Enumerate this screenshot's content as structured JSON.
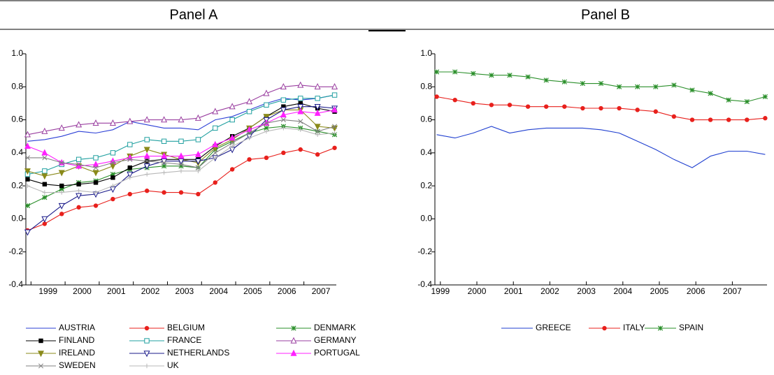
{
  "chart_data": [
    {
      "type": "line",
      "title": "Panel A",
      "x": [
        1998.9,
        1999.4,
        1999.9,
        2000.4,
        2000.9,
        2001.4,
        2001.9,
        2002.4,
        2002.9,
        2003.4,
        2003.9,
        2004.4,
        2004.9,
        2005.4,
        2005.9,
        2006.4,
        2006.9,
        2007.4,
        2007.9
      ],
      "xlim": [
        1998.85,
        2007.95
      ],
      "xticks": [
        1999,
        2000,
        2001,
        2002,
        2003,
        2004,
        2005,
        2006,
        2007
      ],
      "ylim": [
        -0.4,
        1.0
      ],
      "yticks": [
        {
          "value": -0.4,
          "label": "-0.4"
        },
        -0.2,
        {
          "value": 0,
          "label": "0.0"
        },
        0.2,
        0.4,
        0.6,
        0.8,
        {
          "value": 1.0,
          "label": "1.0"
        }
      ],
      "series": [
        {
          "name": "AUSTRIA",
          "color": "#2b3fd6",
          "marker": "none",
          "values": [
            0.47,
            0.48,
            0.5,
            0.53,
            0.52,
            0.54,
            0.59,
            0.57,
            0.55,
            0.55,
            0.54,
            0.6,
            0.62,
            0.66,
            0.7,
            0.73,
            0.72,
            0.73,
            0.75
          ]
        },
        {
          "name": "BELGIUM",
          "color": "#e8201c",
          "marker": "circle",
          "values": [
            -0.07,
            -0.03,
            0.03,
            0.07,
            0.08,
            0.12,
            0.15,
            0.17,
            0.16,
            0.16,
            0.15,
            0.22,
            0.3,
            0.36,
            0.37,
            0.4,
            0.42,
            0.39,
            0.43
          ]
        },
        {
          "name": "DENMARK",
          "color": "#2a8f2a",
          "marker": "asterisk",
          "values": [
            0.08,
            0.13,
            0.18,
            0.22,
            0.23,
            0.27,
            0.3,
            0.31,
            0.32,
            0.32,
            0.31,
            0.42,
            0.47,
            0.52,
            0.55,
            0.56,
            0.55,
            0.53,
            0.51
          ]
        },
        {
          "name": "FINLAND",
          "color": "#000000",
          "marker": "square",
          "values": [
            0.24,
            0.21,
            0.2,
            0.21,
            0.22,
            0.25,
            0.31,
            0.35,
            0.36,
            0.36,
            0.36,
            0.44,
            0.5,
            0.55,
            0.62,
            0.68,
            0.7,
            0.67,
            0.65
          ]
        },
        {
          "name": "FRANCE",
          "color": "#20a0a0",
          "marker": "open-square",
          "values": [
            0.27,
            0.29,
            0.33,
            0.36,
            0.37,
            0.4,
            0.45,
            0.48,
            0.47,
            0.47,
            0.48,
            0.55,
            0.6,
            0.65,
            0.69,
            0.72,
            0.73,
            0.73,
            0.75
          ]
        },
        {
          "name": "GERMANY",
          "color": "#9a3fa0",
          "marker": "open-triangle",
          "values": [
            0.51,
            0.53,
            0.55,
            0.57,
            0.58,
            0.58,
            0.59,
            0.6,
            0.6,
            0.6,
            0.61,
            0.65,
            0.68,
            0.71,
            0.76,
            0.8,
            0.81,
            0.8,
            0.8
          ]
        },
        {
          "name": "IRELAND",
          "color": "#8a8a1a",
          "marker": "down-triangle",
          "values": [
            0.29,
            0.26,
            0.28,
            0.32,
            0.28,
            0.32,
            0.38,
            0.42,
            0.39,
            0.36,
            0.34,
            0.43,
            0.48,
            0.55,
            0.62,
            0.66,
            0.66,
            0.56,
            0.55
          ]
        },
        {
          "name": "NETHERLANDS",
          "color": "#1a1a8a",
          "marker": "open-down-triangle",
          "values": [
            -0.08,
            0.0,
            0.08,
            0.14,
            0.15,
            0.18,
            0.27,
            0.32,
            0.35,
            0.35,
            0.35,
            0.37,
            0.42,
            0.5,
            0.6,
            0.66,
            0.68,
            0.68,
            0.67
          ]
        },
        {
          "name": "PORTUGAL",
          "color": "#ff20ff",
          "marker": "triangle",
          "values": [
            0.44,
            0.4,
            0.34,
            0.32,
            0.33,
            0.35,
            0.37,
            0.38,
            0.38,
            0.38,
            0.39,
            0.45,
            0.49,
            0.54,
            0.58,
            0.63,
            0.65,
            0.64,
            0.66
          ]
        },
        {
          "name": "SWEDEN",
          "color": "#808080",
          "marker": "x",
          "values": [
            0.37,
            0.37,
            0.34,
            0.33,
            0.31,
            0.34,
            0.36,
            0.35,
            0.34,
            0.33,
            0.31,
            0.4,
            0.46,
            0.52,
            0.58,
            0.6,
            0.59,
            0.53,
            0.56
          ]
        },
        {
          "name": "UK",
          "color": "#b8b8b8",
          "marker": "plus",
          "values": [
            0.2,
            0.16,
            0.16,
            0.17,
            0.16,
            0.2,
            0.25,
            0.27,
            0.28,
            0.29,
            0.29,
            0.37,
            0.44,
            0.49,
            0.53,
            0.55,
            0.54,
            0.51,
            0.52
          ]
        }
      ]
    },
    {
      "type": "line",
      "title": "Panel B",
      "x": [
        1998.9,
        1999.4,
        1999.9,
        2000.4,
        2000.9,
        2001.4,
        2001.9,
        2002.4,
        2002.9,
        2003.4,
        2003.9,
        2004.4,
        2004.9,
        2005.4,
        2005.9,
        2006.4,
        2006.9,
        2007.4,
        2007.9
      ],
      "xlim": [
        1998.85,
        2007.95
      ],
      "xticks": [
        1999,
        2000,
        2001,
        2002,
        2003,
        2004,
        2005,
        2006,
        2007
      ],
      "ylim": [
        -0.4,
        1.0
      ],
      "yticks": [
        {
          "value": -0.4,
          "label": "-0.4"
        },
        -0.2,
        {
          "value": 0,
          "label": "0.0"
        },
        0.2,
        0.4,
        0.6,
        0.8,
        {
          "value": 1.0,
          "label": "1.0"
        }
      ],
      "series": [
        {
          "name": "GREECE",
          "color": "#1f3fd0",
          "marker": "none",
          "values": [
            0.51,
            0.49,
            0.52,
            0.56,
            0.52,
            0.54,
            0.55,
            0.55,
            0.55,
            0.54,
            0.52,
            0.47,
            0.42,
            0.36,
            0.31,
            0.38,
            0.41,
            0.41,
            0.39
          ]
        },
        {
          "name": "ITALY",
          "color": "#e8201c",
          "marker": "circle",
          "values": [
            0.74,
            0.72,
            0.7,
            0.69,
            0.69,
            0.68,
            0.68,
            0.68,
            0.67,
            0.67,
            0.67,
            0.66,
            0.65,
            0.62,
            0.6,
            0.6,
            0.6,
            0.6,
            0.61
          ]
        },
        {
          "name": "SPAIN",
          "color": "#2a8f2a",
          "marker": "asterisk",
          "values": [
            0.89,
            0.89,
            0.88,
            0.87,
            0.87,
            0.86,
            0.84,
            0.83,
            0.82,
            0.82,
            0.8,
            0.8,
            0.8,
            0.81,
            0.78,
            0.76,
            0.72,
            0.71,
            0.74
          ]
        }
      ]
    }
  ]
}
